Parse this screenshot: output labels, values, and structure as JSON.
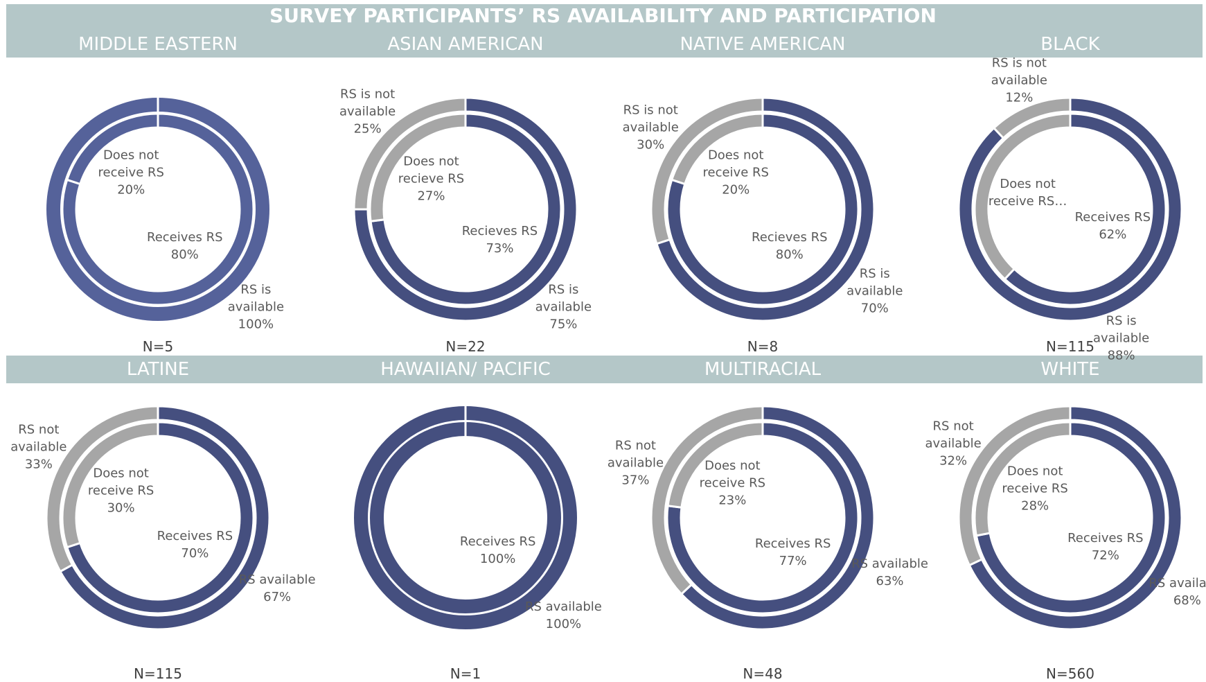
{
  "title": "SURVEY PARTICIPANTS’ RS AVAILABILITY AND PARTICIPATION",
  "chart_data": [
    {
      "type": "donut",
      "title": "MIDDLE EASTERN",
      "note": "N=5",
      "outer": {
        "categories": [
          "RS is available"
        ],
        "values": [
          100
        ],
        "value_labels": [
          "100%"
        ],
        "colors": [
          "#55629a"
        ]
      },
      "inner": {
        "categories": [
          "Receives RS",
          "Does not receive RS"
        ],
        "values": [
          80,
          20
        ],
        "value_labels": [
          "80%",
          "20%"
        ],
        "colors": [
          "#55629a",
          "#55629a"
        ]
      }
    },
    {
      "type": "donut",
      "title": "ASIAN AMERICAN",
      "note": "N=22",
      "outer": {
        "categories": [
          "RS is available",
          "RS is not available"
        ],
        "values": [
          75,
          25
        ],
        "value_labels": [
          "75%",
          "25%"
        ],
        "colors": [
          "#454f7f",
          "#a6a6a6"
        ]
      },
      "inner": {
        "categories": [
          "Recieves RS",
          "Does not recieve RS"
        ],
        "values": [
          73,
          27
        ],
        "value_labels": [
          "73%",
          "27%"
        ],
        "colors": [
          "#454f7f",
          "#a6a6a6"
        ]
      }
    },
    {
      "type": "donut",
      "title": "NATIVE AMERICAN",
      "note": "N=8",
      "outer": {
        "categories": [
          "RS is available",
          "RS is not available"
        ],
        "values": [
          70,
          30
        ],
        "value_labels": [
          "70%",
          "30%"
        ],
        "colors": [
          "#454f7f",
          "#a6a6a6"
        ]
      },
      "inner": {
        "categories": [
          "Recieves RS",
          "Does not receive RS"
        ],
        "values": [
          80,
          20
        ],
        "value_labels": [
          "80%",
          "20%"
        ],
        "colors": [
          "#454f7f",
          "#a6a6a6"
        ]
      }
    },
    {
      "type": "donut",
      "title": "BLACK",
      "note": "N=115",
      "outer": {
        "categories": [
          "RS is available",
          "RS is not available"
        ],
        "values": [
          88,
          12
        ],
        "value_labels": [
          "88%",
          "12%"
        ],
        "colors": [
          "#454f7f",
          "#a6a6a6"
        ]
      },
      "inner": {
        "categories": [
          "Receives RS",
          "Does not receive RS…"
        ],
        "values": [
          62,
          38
        ],
        "value_labels": [
          "62%",
          null
        ],
        "colors": [
          "#454f7f",
          "#a6a6a6"
        ]
      }
    },
    {
      "type": "donut",
      "title": "LATINE",
      "note": "N=115",
      "outer": {
        "categories": [
          "RS available",
          "RS not available"
        ],
        "values": [
          67,
          33
        ],
        "value_labels": [
          "67%",
          "33%"
        ],
        "colors": [
          "#454f7f",
          "#a6a6a6"
        ]
      },
      "inner": {
        "categories": [
          "Receives RS",
          "Does not receive RS"
        ],
        "values": [
          70,
          30
        ],
        "value_labels": [
          "70%",
          "30%"
        ],
        "colors": [
          "#454f7f",
          "#a6a6a6"
        ]
      }
    },
    {
      "type": "donut",
      "title": "HAWAIIAN/ PACIFIC",
      "note": "N=1",
      "outer": {
        "categories": [
          "RS available"
        ],
        "values": [
          100
        ],
        "value_labels": [
          "100%"
        ],
        "colors": [
          "#454f7f"
        ]
      },
      "inner": {
        "categories": [
          "Receives RS"
        ],
        "values": [
          100
        ],
        "value_labels": [
          "100%"
        ],
        "colors": [
          "#454f7f"
        ]
      }
    },
    {
      "type": "donut",
      "title": "MULTIRACIAL",
      "note": "N=48",
      "outer": {
        "categories": [
          "RS available",
          "RS not available"
        ],
        "values": [
          63,
          37
        ],
        "value_labels": [
          "63%",
          "37%"
        ],
        "colors": [
          "#454f7f",
          "#a6a6a6"
        ]
      },
      "inner": {
        "categories": [
          "Receives RS",
          "Does not receive RS"
        ],
        "values": [
          77,
          23
        ],
        "value_labels": [
          "77%",
          "23%"
        ],
        "colors": [
          "#454f7f",
          "#a6a6a6"
        ]
      }
    },
    {
      "type": "donut",
      "title": "WHITE",
      "note": "N=560",
      "outer": {
        "categories": [
          "RS available",
          "RS not available"
        ],
        "values": [
          68,
          32
        ],
        "value_labels": [
          "68%",
          "32%"
        ],
        "colors": [
          "#454f7f",
          "#a6a6a6"
        ]
      },
      "inner": {
        "categories": [
          "Receives RS",
          "Does not receive RS"
        ],
        "values": [
          72,
          28
        ],
        "value_labels": [
          "72%",
          "28%"
        ],
        "colors": [
          "#454f7f",
          "#a6a6a6"
        ]
      }
    }
  ]
}
